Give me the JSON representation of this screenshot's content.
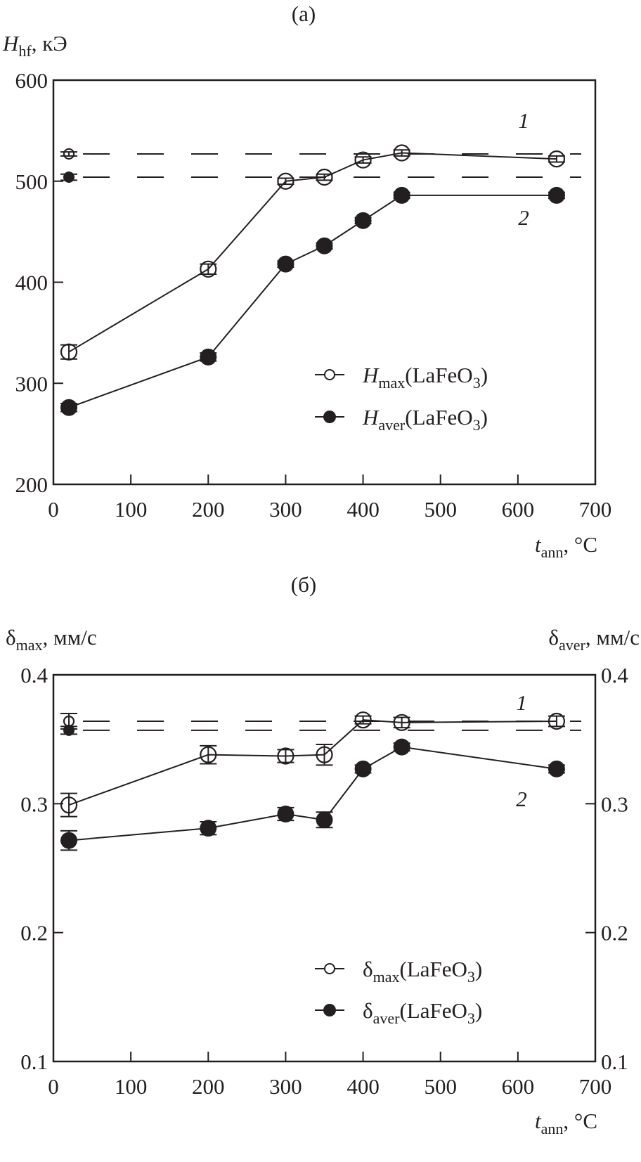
{
  "chart_data": [
    {
      "type": "line",
      "panel_label": "(a)",
      "ylabel": {
        "symbol": "H",
        "sub": "hf",
        "unit": ", кЭ"
      },
      "xlabel": {
        "symbol": "t",
        "sub": "ann",
        "unit": ", °C"
      },
      "xlim": [
        0,
        700
      ],
      "ylim": [
        200,
        600
      ],
      "x_ticks": [
        "0",
        "100",
        "200",
        "300",
        "400",
        "500",
        "600",
        "700"
      ],
      "y_ticks": [
        "200",
        "300",
        "400",
        "500",
        "600"
      ],
      "grid": false,
      "legend_placement": "lower-right",
      "series": [
        {
          "name": {
            "symbol": "H",
            "sub": "max",
            "formula": "(LaFeO",
            "sub2": "3",
            "close": ")"
          },
          "marker": "open-circle",
          "curve_label": "1",
          "x": [
            20,
            200,
            300,
            350,
            400,
            450,
            650
          ],
          "y": [
            331,
            413,
            500,
            504,
            521,
            528,
            522
          ],
          "yerr": [
            7,
            5,
            3,
            3,
            3,
            3,
            3
          ]
        },
        {
          "name": {
            "symbol": "H",
            "sub": "aver",
            "formula": "(LaFeO",
            "sub2": "3",
            "close": ")"
          },
          "marker": "filled-circle",
          "curve_label": "2",
          "x": [
            20,
            200,
            300,
            350,
            400,
            450,
            650
          ],
          "y": [
            276,
            326,
            418,
            436,
            461,
            486,
            486
          ],
          "yerr": [
            4,
            4,
            3,
            3,
            3,
            3,
            3
          ]
        }
      ],
      "reference_lines": [
        {
          "marker": "open-circle",
          "x": 20,
          "y": 527,
          "yerr": 2,
          "style": "dashed"
        },
        {
          "marker": "filled-circle",
          "x": 20,
          "y": 504,
          "yerr": 3,
          "style": "dashed"
        }
      ]
    },
    {
      "type": "line",
      "panel_label": "(б)",
      "ylabel": {
        "symbol": "δ",
        "sub": "max",
        "unit": ", мм/с"
      },
      "ylabel_right": {
        "symbol": "δ",
        "sub": "aver",
        "unit": ", мм/с"
      },
      "xlabel": {
        "symbol": "t",
        "sub": "ann",
        "unit": ", °C"
      },
      "xlim": [
        0,
        700
      ],
      "ylim": [
        0.1,
        0.4
      ],
      "x_ticks": [
        "0",
        "100",
        "200",
        "300",
        "400",
        "500",
        "600",
        "700"
      ],
      "y_ticks": [
        "0.1",
        "0.2",
        "0.3",
        "0.4"
      ],
      "y_ticks_right": [
        "0.1",
        "0.2",
        "0.3",
        "0.4"
      ],
      "grid": false,
      "legend_placement": "lower-right",
      "series": [
        {
          "name": {
            "symbol": "δ",
            "sub": "max",
            "formula": "(LaFeO",
            "sub2": "3",
            "close": ")"
          },
          "marker": "open-circle",
          "curve_label": "1",
          "x": [
            20,
            200,
            300,
            350,
            400,
            450,
            650
          ],
          "y": [
            0.299,
            0.338,
            0.337,
            0.338,
            0.365,
            0.363,
            0.364
          ],
          "yerr": [
            0.009,
            0.007,
            0.005,
            0.008,
            0.003,
            0.004,
            0.004
          ]
        },
        {
          "name": {
            "symbol": "δ",
            "sub": "aver",
            "formula": "(LaFeO",
            "sub2": "3",
            "close": ")"
          },
          "marker": "filled-circle",
          "curve_label": "2",
          "x": [
            20,
            200,
            300,
            350,
            400,
            450,
            650
          ],
          "y": [
            0.2715,
            0.281,
            0.292,
            0.2875,
            0.327,
            0.344,
            0.327
          ],
          "yerr": [
            0.0075,
            0.005,
            0.005,
            0.006,
            0.003,
            0.003,
            0.003
          ]
        }
      ],
      "reference_lines": [
        {
          "marker": "open-circle",
          "x": 20,
          "y": 0.364,
          "yerr": 0.006,
          "style": "dashed"
        },
        {
          "marker": "filled-circle",
          "x": 20,
          "y": 0.357,
          "yerr": 0.003,
          "style": "dashed"
        }
      ]
    }
  ]
}
